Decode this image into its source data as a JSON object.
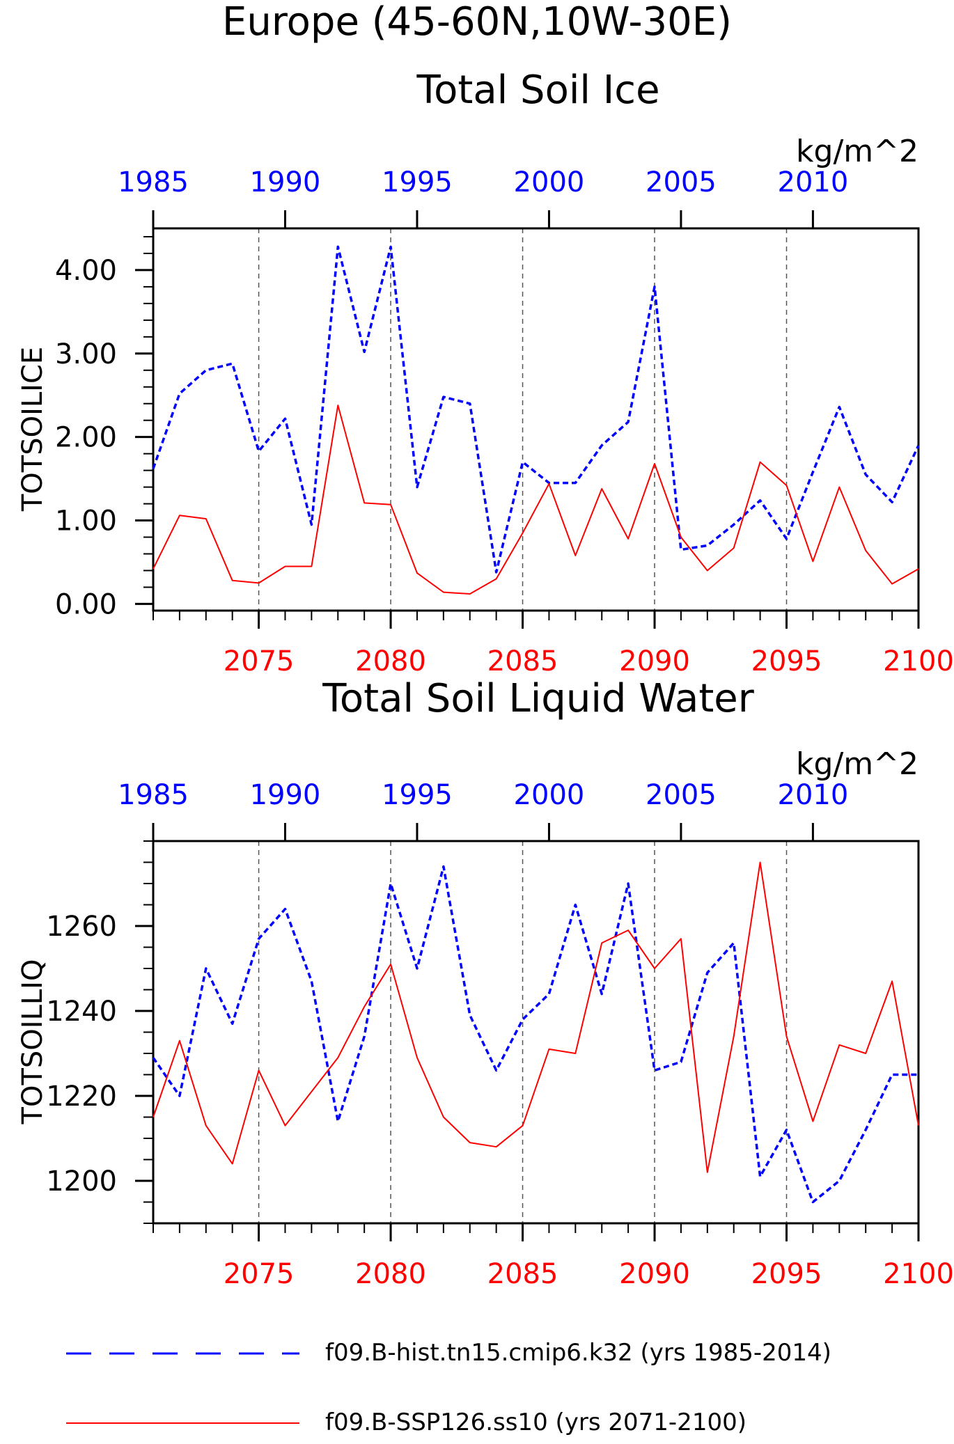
{
  "header": {
    "title": "Europe (45-60N,10W-30E)"
  },
  "colors": {
    "hist": "#0000ff",
    "ssp": "#ff0000",
    "axis": "#000000",
    "grid": "#555555"
  },
  "legend": {
    "entries": [
      {
        "label": "f09.B-hist.tn15.cmip6.k32 (yrs 1985-2014)",
        "style": "dashed",
        "color": "#0000ff"
      },
      {
        "label": "f09.B-SSP126.ss10 (yrs 2071-2100)",
        "style": "solid",
        "color": "#ff0000"
      }
    ]
  },
  "chart_data": [
    {
      "type": "line",
      "title": "Total Soil Ice",
      "ylabel": "TOTSOILICE",
      "units": "kg/m^2",
      "ylim": [
        -0.08,
        4.5
      ],
      "y_ticks": [
        0,
        1,
        2,
        3,
        4
      ],
      "y_tick_labels": [
        "0.00",
        "1.00",
        "2.00",
        "3.00",
        "4.00"
      ],
      "y_minor_step": 0.2,
      "x_bottom": {
        "range": [
          2071,
          2100
        ],
        "ticks": [
          2075,
          2080,
          2085,
          2090,
          2095,
          2100
        ]
      },
      "x_top": {
        "range": [
          1985,
          2014
        ],
        "ticks": [
          1985,
          1990,
          1995,
          2000,
          2005,
          2010
        ]
      },
      "grid": "vertical dashed at bottom major ticks",
      "series": [
        {
          "name": "f09.B-hist.tn15.cmip6.k32 (yrs 1985-2014)",
          "axis": "top",
          "style": "dashed",
          "x": [
            1985,
            1986,
            1987,
            1988,
            1989,
            1990,
            1991,
            1992,
            1993,
            1994,
            1995,
            1996,
            1997,
            1998,
            1999,
            2000,
            2001,
            2002,
            2003,
            2004,
            2005,
            2006,
            2007,
            2008,
            2009,
            2010,
            2011,
            2012,
            2013,
            2014
          ],
          "values": [
            1.62,
            2.52,
            2.8,
            2.88,
            1.83,
            2.22,
            0.95,
            4.28,
            3.02,
            4.28,
            1.4,
            2.48,
            2.4,
            0.38,
            1.7,
            1.45,
            1.45,
            1.9,
            2.18,
            3.8,
            0.65,
            0.7,
            0.95,
            1.24,
            0.78,
            1.58,
            2.36,
            1.55,
            1.22,
            1.9
          ]
        },
        {
          "name": "f09.B-SSP126.ss10 (yrs 2071-2100)",
          "axis": "bottom",
          "style": "solid",
          "x": [
            2071,
            2072,
            2073,
            2074,
            2075,
            2076,
            2077,
            2078,
            2079,
            2080,
            2081,
            2082,
            2083,
            2084,
            2085,
            2086,
            2087,
            2088,
            2089,
            2090,
            2091,
            2092,
            2093,
            2094,
            2095,
            2096,
            2097,
            2098,
            2099,
            2100
          ],
          "values": [
            0.42,
            1.06,
            1.02,
            0.28,
            0.25,
            0.45,
            0.45,
            2.38,
            1.21,
            1.19,
            0.37,
            0.14,
            0.12,
            0.3,
            0.85,
            1.44,
            0.58,
            1.38,
            0.78,
            1.68,
            0.8,
            0.4,
            0.67,
            1.7,
            1.42,
            0.51,
            1.4,
            0.64,
            0.24,
            0.42
          ]
        }
      ]
    },
    {
      "type": "line",
      "title": "Total Soil Liquid Water",
      "ylabel": "TOTSOILLIQ",
      "units": "kg/m^2",
      "ylim": [
        1190,
        1280
      ],
      "y_ticks": [
        1200,
        1220,
        1240,
        1260
      ],
      "y_tick_labels": [
        "1200",
        "1220",
        "1240",
        "1260"
      ],
      "y_minor_step": 5,
      "x_bottom": {
        "range": [
          2071,
          2100
        ],
        "ticks": [
          2075,
          2080,
          2085,
          2090,
          2095,
          2100
        ]
      },
      "x_top": {
        "range": [
          1985,
          2014
        ],
        "ticks": [
          1985,
          1990,
          1995,
          2000,
          2005,
          2010
        ]
      },
      "grid": "vertical dashed at bottom major ticks",
      "series": [
        {
          "name": "f09.B-hist.tn15.cmip6.k32 (yrs 1985-2014)",
          "axis": "top",
          "style": "dashed",
          "x": [
            1985,
            1986,
            1987,
            1988,
            1989,
            1990,
            1991,
            1992,
            1993,
            1994,
            1995,
            1996,
            1997,
            1998,
            1999,
            2000,
            2001,
            2002,
            2003,
            2004,
            2005,
            2006,
            2007,
            2008,
            2009,
            2010,
            2011,
            2012,
            2013,
            2014
          ],
          "values": [
            1229,
            1220,
            1250,
            1237,
            1257,
            1264,
            1247,
            1214,
            1234,
            1270,
            1250,
            1274,
            1239,
            1226,
            1238,
            1244,
            1265,
            1244,
            1270,
            1226,
            1228,
            1249,
            1256,
            1201,
            1212,
            1195,
            1200,
            1212,
            1225,
            1225
          ]
        },
        {
          "name": "f09.B-SSP126.ss10 (yrs 2071-2100)",
          "axis": "bottom",
          "style": "solid",
          "x": [
            2071,
            2072,
            2073,
            2074,
            2075,
            2076,
            2077,
            2078,
            2079,
            2080,
            2081,
            2082,
            2083,
            2084,
            2085,
            2086,
            2087,
            2088,
            2089,
            2090,
            2091,
            2092,
            2093,
            2094,
            2095,
            2096,
            2097,
            2098,
            2099,
            2100
          ],
          "values": [
            1215,
            1233,
            1213,
            1204,
            1226,
            1213,
            1221,
            1229,
            1241,
            1251,
            1229,
            1215,
            1209,
            1208,
            1213,
            1231,
            1230,
            1256,
            1259,
            1250,
            1257,
            1202,
            1234,
            1275,
            1234,
            1214,
            1232,
            1230,
            1247,
            1213
          ]
        }
      ]
    }
  ]
}
